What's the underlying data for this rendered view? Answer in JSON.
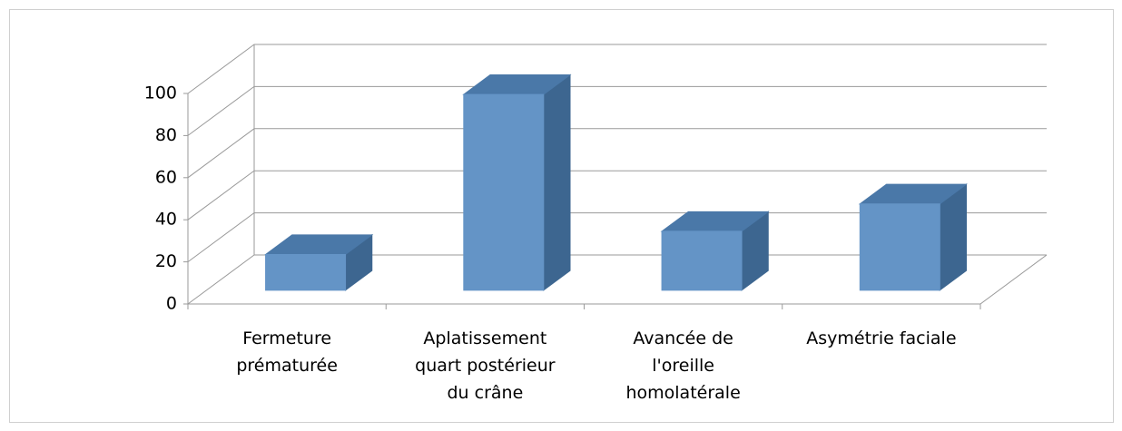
{
  "chart_data": {
    "type": "bar3d",
    "categories": [
      "Fermeture prématurée",
      "Aplatissement quart postérieur du crâne",
      "Avancée de l'oreille homolatérale",
      "Asymétrie faciale"
    ],
    "values": [
      17,
      93,
      28,
      41
    ],
    "color": "#6494c6",
    "ylim": [
      0,
      100
    ],
    "yticks": [
      0,
      20,
      40,
      60,
      80,
      100
    ],
    "grid": true
  }
}
